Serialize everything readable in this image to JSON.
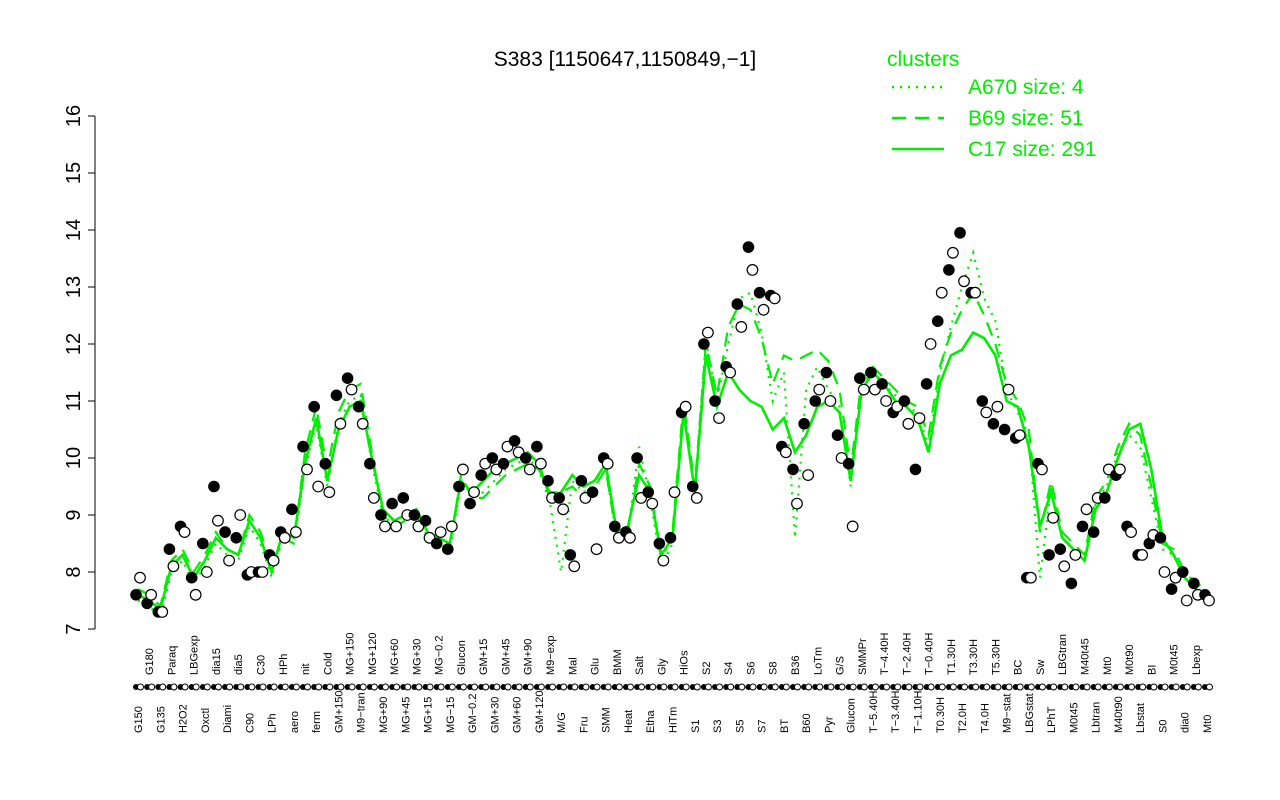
{
  "chart_data": {
    "type": "line",
    "title": "S383 [1150647,1150849,−1]",
    "xlabel": "",
    "ylabel": "",
    "ylim": [
      7,
      16
    ],
    "yticks": [
      7,
      8,
      9,
      10,
      11,
      12,
      13,
      14,
      15,
      16
    ],
    "grid": false,
    "legend": {
      "title": "clusters",
      "placement": "top-right",
      "color": "#00ee00",
      "entries": [
        {
          "label": "A670 size: 4",
          "style": "dotted"
        },
        {
          "label": "B69 size: 51",
          "style": "dashed"
        },
        {
          "label": "C17 size: 291",
          "style": "solid"
        }
      ]
    },
    "x_tick_labels": [
      "G150",
      "G180",
      "G135",
      "Paraq",
      "H2O2",
      "LBGexp",
      "Oxctl",
      "dia15",
      "Diami",
      "dia5",
      "C90",
      "C30",
      "LPh",
      "HPh",
      "aero",
      "nit",
      "ferm",
      "Cold",
      "GM+150",
      "MG+150",
      "M9−tran",
      "MG+120",
      "MG+90",
      "MG+60",
      "MG+45",
      "MG+30",
      "MG+15",
      "MG−0.2",
      "MG−15",
      "Glucon",
      "GM−0.2",
      "GM+15",
      "GM+30",
      "GM+45",
      "GM+60",
      "GM+90",
      "GM+120",
      "M9−exp",
      "M/G",
      "Mal",
      "Fru",
      "Glu",
      "SMM",
      "BMM",
      "Heat",
      "Salt",
      "Etha",
      "Gly",
      "HiTm",
      "HiOs",
      "S1",
      "S2",
      "S3",
      "S4",
      "S5",
      "S6",
      "S7",
      "S8",
      "BT",
      "B36",
      "B60",
      "LoTm",
      "Pyr",
      "G/S",
      "Glucon",
      "SMMPr",
      "T−5.40H",
      "T−4.40H",
      "T−3.40H",
      "T−2.40H",
      "T−1.10H",
      "T−0.40H",
      "T0.30H",
      "T1.30H",
      "T2.0H",
      "T3.30H",
      "T4.0H",
      "T5.30H",
      "M9−stat",
      "BC",
      "LBGstat",
      "Sw",
      "LPhT",
      "LBGtran",
      "M0t45",
      "M40t45",
      "Lbtran",
      "Mt0",
      "M40t90",
      "M0t90",
      "Lbstat",
      "BI",
      "S0",
      "M0t45",
      "dia0",
      "Lbexp",
      "Mt0"
    ],
    "series": [
      {
        "style": "solid",
        "values": [
          7.6,
          7.5,
          7.35,
          8.1,
          8.3,
          7.9,
          8.2,
          8.6,
          8.4,
          8.3,
          8.9,
          8.6,
          8.0,
          8.7,
          8.6,
          9.9,
          10.7,
          9.6,
          10.5,
          10.9,
          11.0,
          10.0,
          9.1,
          8.9,
          9.0,
          9.1,
          8.7,
          8.6,
          8.5,
          9.6,
          9.4,
          9.6,
          9.8,
          9.9,
          10.0,
          10.1,
          9.9,
          9.3,
          9.4,
          9.7,
          9.5,
          9.6,
          9.9,
          8.7,
          8.8,
          9.7,
          9.4,
          8.3,
          8.6,
          10.8,
          9.4,
          11.8,
          10.9,
          11.5,
          11.2,
          11.0,
          10.9,
          10.5,
          10.7,
          10.1,
          10.4,
          10.9,
          11.0,
          10.8,
          9.6,
          11.2,
          11.5,
          11.3,
          11.0,
          10.9,
          10.7,
          10.1,
          11.3,
          11.8,
          11.9,
          12.2,
          12.1,
          11.8,
          11.0,
          10.9,
          10.2,
          8.8,
          9.4,
          8.6,
          8.4,
          8.2,
          9.1,
          9.4,
          10.0,
          10.5,
          10.6,
          9.8,
          8.6,
          8.3,
          7.9,
          7.7,
          7.6
        ]
      },
      {
        "style": "dashed",
        "values": [
          7.7,
          7.6,
          7.4,
          8.2,
          8.4,
          8.0,
          8.3,
          8.7,
          8.4,
          8.3,
          9.0,
          8.7,
          8.1,
          8.6,
          8.5,
          10.1,
          10.9,
          9.8,
          10.8,
          11.2,
          11.3,
          10.1,
          9.0,
          8.8,
          8.9,
          9.0,
          8.6,
          8.5,
          8.4,
          9.7,
          9.3,
          9.3,
          9.5,
          9.7,
          9.8,
          9.9,
          9.8,
          9.4,
          9.4,
          9.5,
          9.3,
          9.5,
          9.8,
          8.6,
          8.7,
          9.9,
          9.5,
          8.2,
          8.7,
          11.0,
          9.5,
          12.0,
          11.1,
          12.3,
          12.7,
          12.6,
          12.1,
          11.3,
          11.8,
          11.7,
          11.8,
          11.9,
          11.7,
          11.2,
          9.8,
          11.4,
          11.6,
          11.4,
          11.2,
          11.0,
          10.9,
          10.4,
          11.6,
          12.2,
          12.6,
          12.9,
          12.5,
          12.0,
          11.3,
          11.0,
          10.5,
          8.7,
          9.6,
          8.7,
          8.5,
          8.3,
          9.3,
          9.6,
          10.2,
          10.6,
          10.4,
          9.5,
          8.5,
          8.4,
          8.0,
          7.8,
          7.7
        ]
      },
      {
        "style": "dotted",
        "values": [
          7.5,
          7.4,
          7.2,
          8.0,
          8.2,
          7.8,
          8.1,
          8.5,
          8.3,
          8.2,
          8.8,
          8.5,
          7.9,
          8.6,
          8.5,
          9.8,
          10.6,
          9.5,
          10.6,
          11.0,
          11.1,
          9.9,
          9.0,
          8.8,
          8.9,
          9.0,
          8.6,
          8.5,
          8.4,
          9.5,
          9.3,
          9.4,
          9.6,
          9.8,
          9.9,
          10.0,
          9.8,
          9.2,
          8.0,
          9.6,
          9.4,
          9.5,
          9.8,
          8.6,
          8.7,
          10.2,
          9.3,
          8.1,
          8.5,
          10.9,
          9.4,
          12.1,
          11.0,
          12.0,
          12.8,
          12.9,
          12.2,
          11.0,
          11.5,
          8.6,
          11.2,
          11.6,
          11.2,
          10.9,
          9.5,
          11.3,
          11.5,
          11.3,
          11.1,
          10.9,
          10.8,
          10.2,
          11.5,
          12.3,
          13.0,
          13.6,
          12.8,
          12.4,
          11.2,
          10.8,
          10.4,
          7.9,
          9.5,
          8.6,
          8.4,
          8.2,
          9.2,
          9.5,
          10.1,
          10.4,
          10.2,
          9.3,
          8.4,
          8.3,
          7.9,
          7.7,
          7.5
        ]
      }
    ],
    "points": [
      [
        7.6,
        7.9
      ],
      [
        7.45,
        7.6
      ],
      [
        7.3,
        7.3
      ],
      [
        8.4,
        8.1
      ],
      [
        8.8,
        8.7
      ],
      [
        7.9,
        7.6
      ],
      [
        8.5,
        8.0
      ],
      [
        9.5,
        8.9
      ],
      [
        8.7,
        8.2
      ],
      [
        8.6,
        9.0
      ],
      [
        7.95,
        8.0
      ],
      [
        8.0,
        8.0
      ],
      [
        8.3,
        8.2
      ],
      [
        8.7,
        8.6
      ],
      [
        9.1,
        8.7
      ],
      [
        10.2,
        9.8
      ],
      [
        10.9,
        9.5
      ],
      [
        9.9,
        9.4
      ],
      [
        11.1,
        10.6
      ],
      [
        11.4,
        11.2
      ],
      [
        10.9,
        10.6
      ],
      [
        9.9,
        9.3
      ],
      [
        9.0,
        8.8
      ],
      [
        9.2,
        8.8
      ],
      [
        9.3,
        9.0
      ],
      [
        9.0,
        8.8
      ],
      [
        8.9,
        8.6
      ],
      [
        8.5,
        8.7
      ],
      [
        8.4,
        8.8
      ],
      [
        9.5,
        9.8
      ],
      [
        9.2,
        9.4
      ],
      [
        9.7,
        9.9
      ],
      [
        10.0,
        9.8
      ],
      [
        9.9,
        10.2
      ],
      [
        10.3,
        10.1
      ],
      [
        10.0,
        9.8
      ],
      [
        10.2,
        9.9
      ],
      [
        9.6,
        9.3
      ],
      [
        9.3,
        9.1
      ],
      [
        8.3,
        8.1
      ],
      [
        9.6,
        9.3
      ],
      [
        9.4,
        8.4
      ],
      [
        10.0,
        9.9
      ],
      [
        8.8,
        8.6
      ],
      [
        8.7,
        8.6
      ],
      [
        10.0,
        9.3
      ],
      [
        9.4,
        9.2
      ],
      [
        8.5,
        8.2
      ],
      [
        8.6,
        9.4
      ],
      [
        10.8,
        10.9
      ],
      [
        9.5,
        9.3
      ],
      [
        12.0,
        12.2
      ],
      [
        11.0,
        10.7
      ],
      [
        11.6,
        11.5
      ],
      [
        12.7,
        12.3
      ],
      [
        13.7,
        13.3
      ],
      [
        12.9,
        12.6
      ],
      [
        12.85,
        12.8
      ],
      [
        10.2,
        10.1
      ],
      [
        9.8,
        9.2
      ],
      [
        10.6,
        9.7
      ],
      [
        11.0,
        11.2
      ],
      [
        11.5,
        11.0
      ],
      [
        10.4,
        10.0
      ],
      [
        9.9,
        8.8
      ],
      [
        11.4,
        11.2
      ],
      [
        11.5,
        11.2
      ],
      [
        11.3,
        11.0
      ],
      [
        10.8,
        10.9
      ],
      [
        11.0,
        10.6
      ],
      [
        9.8,
        10.7
      ],
      [
        11.3,
        12.0
      ],
      [
        12.4,
        12.9
      ],
      [
        13.3,
        13.6
      ],
      [
        13.95,
        13.1
      ],
      [
        12.9,
        12.9
      ],
      [
        11.0,
        10.8
      ],
      [
        10.6,
        10.9
      ],
      [
        10.5,
        11.2
      ],
      [
        10.35,
        10.4
      ],
      [
        7.9,
        7.9
      ],
      [
        9.9,
        9.8
      ],
      [
        8.3,
        8.95
      ],
      [
        8.4,
        8.1
      ],
      [
        7.8,
        8.3
      ],
      [
        8.8,
        9.1
      ],
      [
        8.7,
        9.3
      ],
      [
        9.3,
        9.8
      ],
      [
        9.7,
        9.8
      ],
      [
        8.8,
        8.7
      ],
      [
        8.3,
        8.3
      ],
      [
        8.5,
        8.65
      ],
      [
        8.6,
        8.0
      ],
      [
        7.7,
        7.9
      ],
      [
        8.0,
        7.5
      ],
      [
        7.8,
        7.6
      ],
      [
        7.6,
        7.5
      ]
    ]
  }
}
